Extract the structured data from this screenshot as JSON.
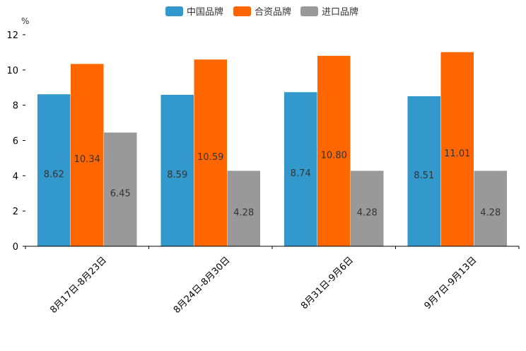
{
  "chart_data": {
    "type": "bar",
    "title": "",
    "xlabel": "",
    "ylabel": "%",
    "ylim": [
      0,
      12
    ],
    "yticks": [
      0,
      2,
      4,
      6,
      8,
      10,
      12
    ],
    "grid": false,
    "legend_position": "top-center",
    "categories": [
      "8月17日-8月23日",
      "8月24日-8月30日",
      "8月31日-9月6日",
      "9月7日-9月13日"
    ],
    "series": [
      {
        "name": "中国品牌",
        "color": "#3399cc",
        "values": [
          8.62,
          8.59,
          8.74,
          8.51
        ],
        "labels": [
          "8.62",
          "8.59",
          "8.74",
          "8.51"
        ]
      },
      {
        "name": "合资品牌",
        "color": "#ff6600",
        "values": [
          10.34,
          10.59,
          10.8,
          11.01
        ],
        "labels": [
          "10.34",
          "10.59",
          "10.80",
          "11.01"
        ]
      },
      {
        "name": "进口品牌",
        "color": "#999999",
        "values": [
          6.45,
          4.28,
          4.28,
          4.28
        ],
        "labels": [
          "6.45",
          "4.28",
          "4.28",
          "4.28"
        ]
      }
    ]
  }
}
